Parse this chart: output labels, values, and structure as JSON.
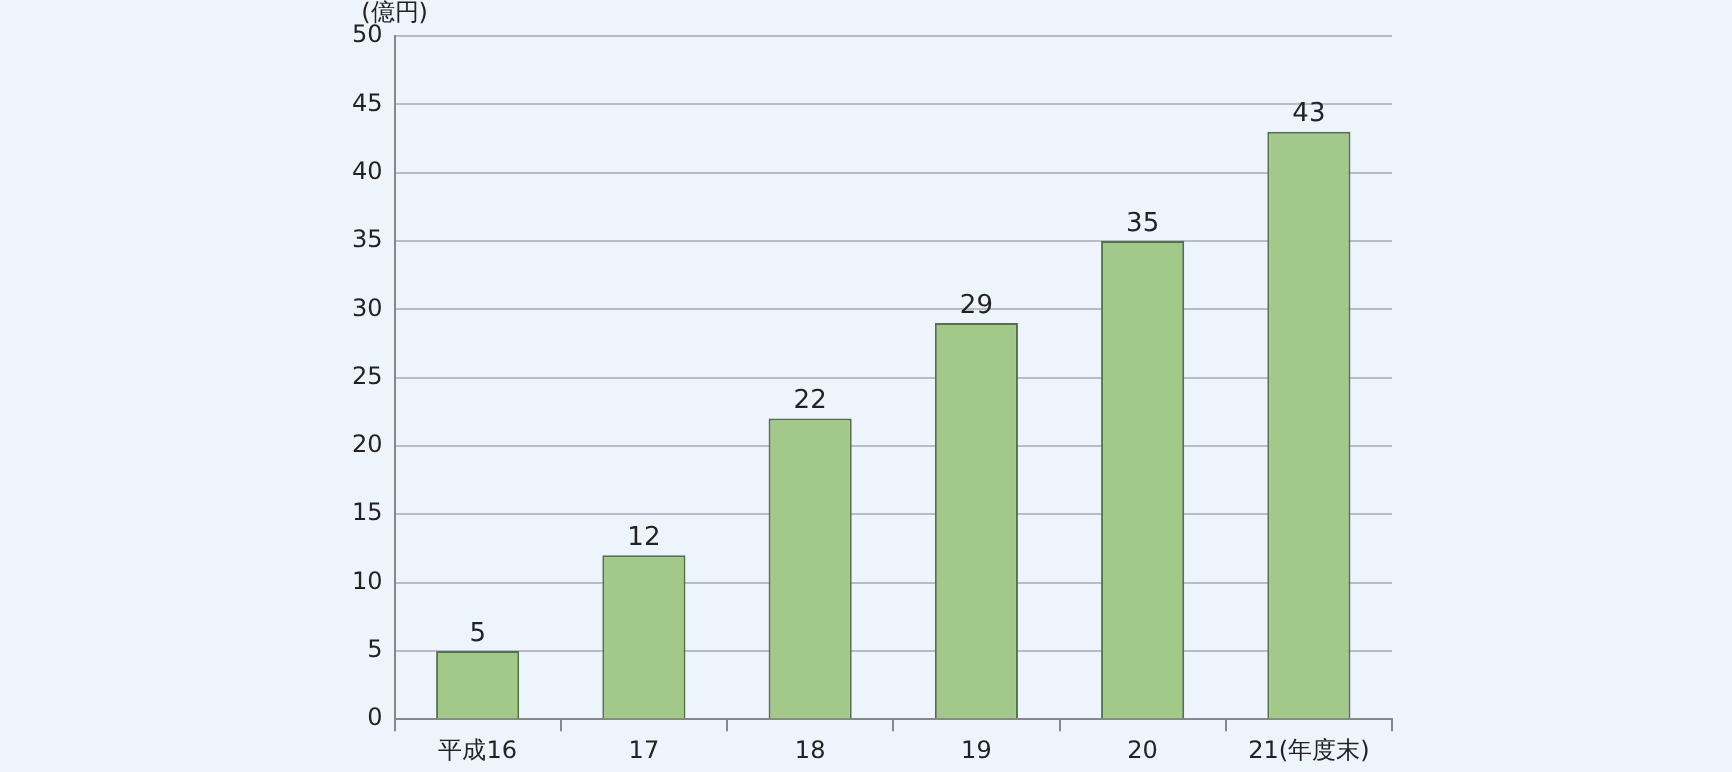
{
  "chart_data": {
    "type": "bar",
    "ylabel": "(億円)",
    "categories": [
      "平成16",
      "17",
      "18",
      "19",
      "20",
      "21(年度末)"
    ],
    "values": [
      5,
      12,
      22,
      29,
      35,
      43
    ],
    "color": "#a3c98a",
    "ylim": [
      0,
      50
    ],
    "yticks": [
      0,
      5,
      10,
      15,
      20,
      25,
      30,
      35,
      40,
      45,
      50
    ],
    "grid": "y",
    "data_labels": true,
    "legend": false
  }
}
